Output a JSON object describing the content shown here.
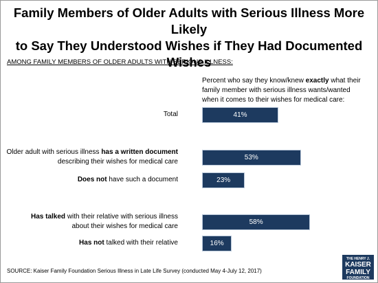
{
  "chart_data": {
    "type": "bar",
    "title": [
      "Family Members of Older Adults with Serious Illness More Likely",
      "to Say They Understood Wishes if They Had Documented Wishes"
    ],
    "subtitle": "AMONG FAMILY MEMBERS OF OLDER ADULTS WITH SERIOUS ILLNESS:",
    "value_axis_label": [
      [
        {
          "text": "Percent who say they know/knew "
        },
        {
          "text": "exactly",
          "bold": true
        },
        {
          "text": " what their"
        }
      ],
      [
        {
          "text": "family member with serious illness wants/wanted"
        }
      ],
      [
        {
          "text": "when it comes to their wishes for medical care:"
        }
      ]
    ],
    "categories": [
      [
        [
          {
            "text": "Total"
          }
        ]
      ],
      [
        [
          {
            "text": "Older adult with serious illness "
          },
          {
            "text": "has a written document",
            "bold": true
          }
        ],
        [
          {
            "text": "describing their wishes for medical care"
          }
        ]
      ],
      [
        [
          {
            "text": "Does not",
            "bold": true
          },
          {
            "text": " have such a document"
          }
        ]
      ],
      [
        [
          {
            "text": "Has talked",
            "bold": true
          },
          {
            "text": " with their relative with serious illness"
          }
        ],
        [
          {
            "text": "about their wishes for medical care"
          }
        ]
      ],
      [
        [
          {
            "text": "Has not",
            "bold": true
          },
          {
            "text": " talked with their relative"
          }
        ]
      ]
    ],
    "values": [
      41,
      53,
      23,
      58,
      16
    ],
    "value_labels": [
      "41%",
      "53%",
      "23%",
      "58%",
      "16%"
    ],
    "color": "#1d3a5f",
    "source": "SOURCE: Kaiser Family Foundation Serious Illness in Late Life Survey (conducted May 4-July 12, 2017)",
    "logo": [
      "THE HENRY J.",
      "KAISER",
      "FAMILY",
      "FOUNDATION"
    ]
  }
}
